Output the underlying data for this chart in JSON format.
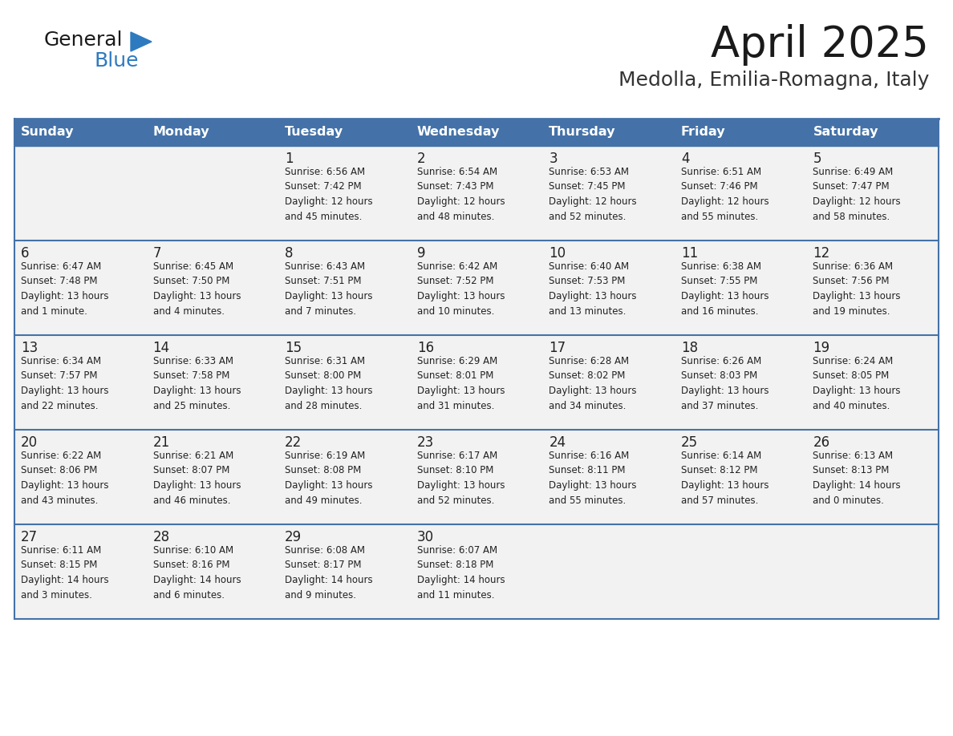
{
  "title": "April 2025",
  "subtitle": "Medolla, Emilia-Romagna, Italy",
  "days_of_week": [
    "Sunday",
    "Monday",
    "Tuesday",
    "Wednesday",
    "Thursday",
    "Friday",
    "Saturday"
  ],
  "header_bg": "#4472a8",
  "header_text": "#ffffff",
  "cell_bg": "#f2f2f2",
  "border_color": "#4472a8",
  "day_num_color": "#222222",
  "text_color": "#222222",
  "title_color": "#1a1a1a",
  "subtitle_color": "#333333",
  "logo_general_color": "#1a1a1a",
  "logo_blue_color": "#2e7abf",
  "weeks": [
    [
      {
        "day": null,
        "info": null
      },
      {
        "day": null,
        "info": null
      },
      {
        "day": 1,
        "info": "Sunrise: 6:56 AM\nSunset: 7:42 PM\nDaylight: 12 hours\nand 45 minutes."
      },
      {
        "day": 2,
        "info": "Sunrise: 6:54 AM\nSunset: 7:43 PM\nDaylight: 12 hours\nand 48 minutes."
      },
      {
        "day": 3,
        "info": "Sunrise: 6:53 AM\nSunset: 7:45 PM\nDaylight: 12 hours\nand 52 minutes."
      },
      {
        "day": 4,
        "info": "Sunrise: 6:51 AM\nSunset: 7:46 PM\nDaylight: 12 hours\nand 55 minutes."
      },
      {
        "day": 5,
        "info": "Sunrise: 6:49 AM\nSunset: 7:47 PM\nDaylight: 12 hours\nand 58 minutes."
      }
    ],
    [
      {
        "day": 6,
        "info": "Sunrise: 6:47 AM\nSunset: 7:48 PM\nDaylight: 13 hours\nand 1 minute."
      },
      {
        "day": 7,
        "info": "Sunrise: 6:45 AM\nSunset: 7:50 PM\nDaylight: 13 hours\nand 4 minutes."
      },
      {
        "day": 8,
        "info": "Sunrise: 6:43 AM\nSunset: 7:51 PM\nDaylight: 13 hours\nand 7 minutes."
      },
      {
        "day": 9,
        "info": "Sunrise: 6:42 AM\nSunset: 7:52 PM\nDaylight: 13 hours\nand 10 minutes."
      },
      {
        "day": 10,
        "info": "Sunrise: 6:40 AM\nSunset: 7:53 PM\nDaylight: 13 hours\nand 13 minutes."
      },
      {
        "day": 11,
        "info": "Sunrise: 6:38 AM\nSunset: 7:55 PM\nDaylight: 13 hours\nand 16 minutes."
      },
      {
        "day": 12,
        "info": "Sunrise: 6:36 AM\nSunset: 7:56 PM\nDaylight: 13 hours\nand 19 minutes."
      }
    ],
    [
      {
        "day": 13,
        "info": "Sunrise: 6:34 AM\nSunset: 7:57 PM\nDaylight: 13 hours\nand 22 minutes."
      },
      {
        "day": 14,
        "info": "Sunrise: 6:33 AM\nSunset: 7:58 PM\nDaylight: 13 hours\nand 25 minutes."
      },
      {
        "day": 15,
        "info": "Sunrise: 6:31 AM\nSunset: 8:00 PM\nDaylight: 13 hours\nand 28 minutes."
      },
      {
        "day": 16,
        "info": "Sunrise: 6:29 AM\nSunset: 8:01 PM\nDaylight: 13 hours\nand 31 minutes."
      },
      {
        "day": 17,
        "info": "Sunrise: 6:28 AM\nSunset: 8:02 PM\nDaylight: 13 hours\nand 34 minutes."
      },
      {
        "day": 18,
        "info": "Sunrise: 6:26 AM\nSunset: 8:03 PM\nDaylight: 13 hours\nand 37 minutes."
      },
      {
        "day": 19,
        "info": "Sunrise: 6:24 AM\nSunset: 8:05 PM\nDaylight: 13 hours\nand 40 minutes."
      }
    ],
    [
      {
        "day": 20,
        "info": "Sunrise: 6:22 AM\nSunset: 8:06 PM\nDaylight: 13 hours\nand 43 minutes."
      },
      {
        "day": 21,
        "info": "Sunrise: 6:21 AM\nSunset: 8:07 PM\nDaylight: 13 hours\nand 46 minutes."
      },
      {
        "day": 22,
        "info": "Sunrise: 6:19 AM\nSunset: 8:08 PM\nDaylight: 13 hours\nand 49 minutes."
      },
      {
        "day": 23,
        "info": "Sunrise: 6:17 AM\nSunset: 8:10 PM\nDaylight: 13 hours\nand 52 minutes."
      },
      {
        "day": 24,
        "info": "Sunrise: 6:16 AM\nSunset: 8:11 PM\nDaylight: 13 hours\nand 55 minutes."
      },
      {
        "day": 25,
        "info": "Sunrise: 6:14 AM\nSunset: 8:12 PM\nDaylight: 13 hours\nand 57 minutes."
      },
      {
        "day": 26,
        "info": "Sunrise: 6:13 AM\nSunset: 8:13 PM\nDaylight: 14 hours\nand 0 minutes."
      }
    ],
    [
      {
        "day": 27,
        "info": "Sunrise: 6:11 AM\nSunset: 8:15 PM\nDaylight: 14 hours\nand 3 minutes."
      },
      {
        "day": 28,
        "info": "Sunrise: 6:10 AM\nSunset: 8:16 PM\nDaylight: 14 hours\nand 6 minutes."
      },
      {
        "day": 29,
        "info": "Sunrise: 6:08 AM\nSunset: 8:17 PM\nDaylight: 14 hours\nand 9 minutes."
      },
      {
        "day": 30,
        "info": "Sunrise: 6:07 AM\nSunset: 8:18 PM\nDaylight: 14 hours\nand 11 minutes."
      },
      {
        "day": null,
        "info": null
      },
      {
        "day": null,
        "info": null
      },
      {
        "day": null,
        "info": null
      }
    ]
  ]
}
